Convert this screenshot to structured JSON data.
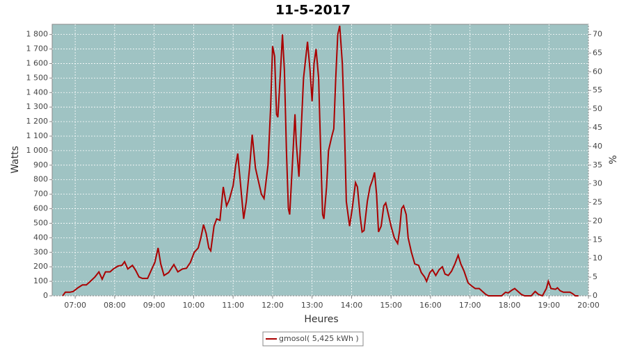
{
  "chart_data": {
    "type": "line",
    "title": "11-5-2017",
    "x_label": "Heures",
    "y_label": "Watts",
    "y2_label": "%",
    "x": [
      "06:41",
      "06:45",
      "06:52",
      "06:57",
      "07:04",
      "07:11",
      "07:17",
      "07:23",
      "07:30",
      "07:36",
      "07:41",
      "07:46",
      "07:53",
      "07:58",
      "08:05",
      "08:11",
      "08:15",
      "08:20",
      "08:27",
      "08:32",
      "08:37",
      "08:42",
      "08:50",
      "08:56",
      "09:01",
      "09:06",
      "09:10",
      "09:15",
      "09:22",
      "09:30",
      "09:36",
      "09:43",
      "09:49",
      "09:55",
      "10:01",
      "10:07",
      "10:11",
      "10:15",
      "10:19",
      "10:23",
      "10:26",
      "10:31",
      "10:35",
      "10:40",
      "10:45",
      "10:50",
      "10:54",
      "11:00",
      "11:04",
      "11:07",
      "11:11",
      "11:16",
      "11:20",
      "11:25",
      "11:29",
      "11:34",
      "11:39",
      "11:43",
      "11:47",
      "11:53",
      "11:57",
      "12:00",
      "12:03",
      "12:06",
      "12:08",
      "12:12",
      "12:15",
      "12:18",
      "12:21",
      "12:24",
      "12:26",
      "12:30",
      "12:34",
      "12:36",
      "12:40",
      "12:43",
      "12:47",
      "12:53",
      "12:57",
      "13:00",
      "13:03",
      "13:06",
      "13:10",
      "13:13",
      "13:16",
      "13:18",
      "13:22",
      "13:25",
      "13:30",
      "13:33",
      "13:36",
      "13:39",
      "13:42",
      "13:46",
      "13:49",
      "13:52",
      "13:57",
      "14:01",
      "14:06",
      "14:09",
      "14:13",
      "14:16",
      "14:19",
      "14:24",
      "14:28",
      "14:32",
      "14:35",
      "14:38",
      "14:41",
      "14:45",
      "14:49",
      "14:52",
      "14:56",
      "15:00",
      "15:05",
      "15:10",
      "15:13",
      "15:16",
      "15:19",
      "15:23",
      "15:26",
      "15:31",
      "15:36",
      "15:42",
      "15:46",
      "15:51",
      "15:54",
      "15:59",
      "16:03",
      "16:08",
      "16:13",
      "16:18",
      "16:22",
      "16:27",
      "16:32",
      "16:37",
      "16:42",
      "16:46",
      "16:51",
      "16:57",
      "17:02",
      "17:08",
      "17:14",
      "17:19",
      "17:24",
      "17:28",
      "17:38",
      "17:48",
      "17:54",
      "17:58",
      "18:04",
      "18:08",
      "18:13",
      "18:18",
      "18:23",
      "18:33",
      "18:39",
      "18:44",
      "18:50",
      "18:56",
      "18:59",
      "19:03",
      "19:10",
      "19:13",
      "19:17",
      "19:22",
      "19:32",
      "19:36",
      "19:40",
      "19:45"
    ],
    "series": [
      {
        "name": "gmosol( 5,425 kWh )",
        "color": "#aa0000",
        "values": [
          0,
          25,
          25,
          30,
          55,
          75,
          75,
          100,
          130,
          165,
          115,
          165,
          165,
          185,
          205,
          210,
          235,
          185,
          210,
          175,
          130,
          120,
          120,
          180,
          230,
          330,
          220,
          140,
          160,
          215,
          165,
          185,
          190,
          230,
          300,
          330,
          400,
          490,
          430,
          330,
          310,
          480,
          530,
          520,
          750,
          620,
          660,
          760,
          900,
          980,
          780,
          530,
          650,
          880,
          1110,
          880,
          780,
          700,
          670,
          900,
          1300,
          1720,
          1650,
          1250,
          1230,
          1550,
          1800,
          1550,
          1000,
          600,
          560,
          900,
          1250,
          1050,
          820,
          1100,
          1500,
          1750,
          1550,
          1340,
          1600,
          1700,
          1500,
          1000,
          560,
          530,
          750,
          1000,
          1100,
          1150,
          1500,
          1800,
          1860,
          1600,
          1200,
          650,
          480,
          600,
          780,
          750,
          550,
          440,
          450,
          650,
          750,
          800,
          850,
          700,
          440,
          480,
          620,
          640,
          560,
          480,
          400,
          360,
          450,
          600,
          620,
          560,
          400,
          300,
          220,
          210,
          160,
          130,
          100,
          160,
          180,
          140,
          180,
          200,
          150,
          140,
          170,
          220,
          280,
          220,
          170,
          90,
          70,
          50,
          50,
          30,
          10,
          0,
          0,
          0,
          25,
          20,
          40,
          50,
          30,
          10,
          0,
          0,
          30,
          10,
          0,
          50,
          100,
          50,
          45,
          55,
          35,
          25,
          25,
          15,
          0,
          0
        ]
      }
    ],
    "xlim": [
      "06:25",
      "20:00"
    ],
    "xticks": [
      "07:00",
      "08:00",
      "09:00",
      "10:00",
      "11:00",
      "12:00",
      "13:00",
      "14:00",
      "15:00",
      "16:00",
      "17:00",
      "18:00",
      "19:00",
      "20:00"
    ],
    "ylim": [
      0,
      1870
    ],
    "yticks": [
      0,
      100,
      200,
      300,
      400,
      500,
      600,
      700,
      800,
      900,
      {
        "value": 1000,
        "label": "1 000"
      },
      {
        "value": 1100,
        "label": "1 100"
      },
      {
        "value": 1200,
        "label": "1 200"
      },
      {
        "value": 1300,
        "label": "1 300"
      },
      {
        "value": 1400,
        "label": "1 400"
      },
      {
        "value": 1500,
        "label": "1 500"
      },
      {
        "value": 1600,
        "label": "1 600"
      },
      {
        "value": 1700,
        "label": "1 700"
      },
      {
        "value": 1800,
        "label": "1 800"
      }
    ],
    "y2lim": [
      0,
      72.7
    ],
    "y2ticks": [
      0,
      5,
      10,
      15,
      20,
      25,
      30,
      35,
      40,
      45,
      50,
      55,
      60,
      65,
      70
    ],
    "grid": true,
    "legend": "bottom",
    "background": "#9fc3c3"
  }
}
